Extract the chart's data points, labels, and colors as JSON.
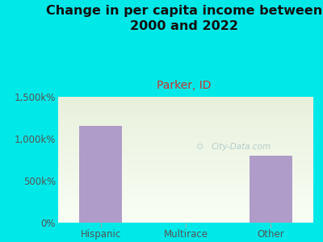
{
  "title": "Change in per capita income between\n2000 and 2022",
  "subtitle": "Parker, ID",
  "categories": [
    "Hispanic",
    "Multirace",
    "Other"
  ],
  "values": [
    1150,
    0,
    800
  ],
  "bar_color": "#b09cc8",
  "bg_color": "#00e8e8",
  "plot_bg_color_top": "#e8f0dc",
  "plot_bg_color_bottom": "#f8fef4",
  "title_color": "#111111",
  "subtitle_color": "#cc3333",
  "axis_label_color": "#555555",
  "ylim": [
    0,
    1500
  ],
  "yticks": [
    0,
    500,
    1000,
    1500
  ],
  "ytick_labels": [
    "0%",
    "500k%",
    "1,000k%",
    "1,500k%"
  ],
  "watermark": "City-Data.com",
  "watermark_color": "#adc8c8",
  "title_fontsize": 11.5,
  "subtitle_fontsize": 10,
  "tick_fontsize": 8.5
}
